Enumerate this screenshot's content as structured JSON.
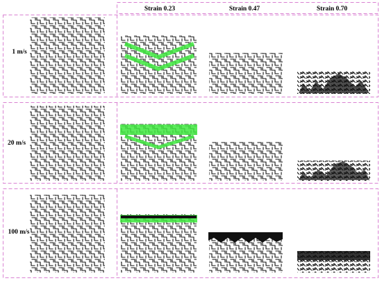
{
  "columns": [
    "Strain 0.23",
    "Strain 0.47",
    "Strain 0.70"
  ],
  "rows": [
    "1 m/s",
    "20 m/s",
    "100 m/s"
  ],
  "colors": {
    "frame": "#d982d2",
    "lattice": "#111111",
    "band": "#3ee83e"
  },
  "cells": [
    [
      {
        "strain": 0.23,
        "compaction": 0.0,
        "bands": "double-v"
      },
      {
        "strain": 0.47,
        "compaction": 0.0,
        "bands": "none"
      },
      {
        "strain": 0.7,
        "compaction": 0.3,
        "bands": "none"
      }
    ],
    [
      {
        "strain": 0.23,
        "compaction": 0.0,
        "bands": "top-and-v"
      },
      {
        "strain": 0.47,
        "compaction": 0.0,
        "bands": "none"
      },
      {
        "strain": 0.7,
        "compaction": 0.3,
        "bands": "none"
      }
    ],
    [
      {
        "strain": 0.23,
        "compaction": 0.0,
        "bands": "top"
      },
      {
        "strain": 0.47,
        "compaction": 0.5,
        "bands": "none"
      },
      {
        "strain": 0.7,
        "compaction": 0.7,
        "bands": "none"
      }
    ]
  ]
}
